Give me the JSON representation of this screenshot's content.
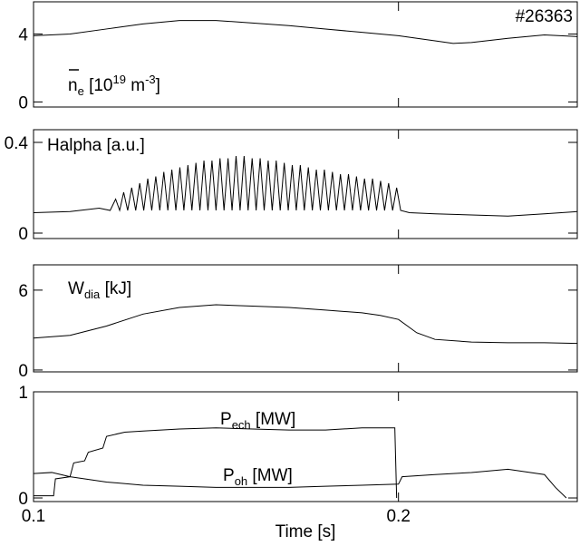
{
  "chart_data": [
    {
      "type": "line",
      "annotation": "#26363",
      "label": [
        "n",
        "e",
        " [10",
        "19",
        " m",
        "-3",
        "]"
      ],
      "ylim": [
        -0.3,
        5.9
      ],
      "yticks": [
        0,
        4
      ],
      "series": [
        {
          "color": "#000000",
          "x": [
            0.1,
            0.11,
            0.12,
            0.13,
            0.14,
            0.15,
            0.16,
            0.17,
            0.18,
            0.19,
            0.2,
            0.21,
            0.215,
            0.22,
            0.23,
            0.24,
            0.249
          ],
          "values": [
            3.9,
            4.0,
            4.3,
            4.6,
            4.8,
            4.8,
            4.65,
            4.5,
            4.3,
            4.1,
            3.9,
            3.6,
            3.45,
            3.5,
            3.75,
            3.95,
            3.85
          ]
        }
      ]
    },
    {
      "type": "line",
      "label": [
        "Halpha [a.u.]"
      ],
      "ylim": [
        -0.024,
        0.456
      ],
      "yticks": [
        0,
        0.4
      ],
      "series": [
        {
          "color": "#000000",
          "x": [
            0.1,
            0.11,
            0.118,
            0.121,
            0.1225,
            0.1236,
            0.1247,
            0.1258,
            0.1269,
            0.128,
            0.1291,
            0.1302,
            0.1313,
            0.1324,
            0.1335,
            0.1346,
            0.1357,
            0.1368,
            0.1379,
            0.139,
            0.1401,
            0.1412,
            0.1423,
            0.1434,
            0.1445,
            0.1456,
            0.1467,
            0.1478,
            0.1489,
            0.15,
            0.1511,
            0.1522,
            0.1533,
            0.1544,
            0.1555,
            0.1566,
            0.1577,
            0.1588,
            0.1599,
            0.161,
            0.1621,
            0.1632,
            0.1643,
            0.1654,
            0.1665,
            0.1676,
            0.1687,
            0.1698,
            0.1709,
            0.172,
            0.1731,
            0.1742,
            0.1753,
            0.1764,
            0.1775,
            0.1786,
            0.1797,
            0.1808,
            0.1819,
            0.183,
            0.1841,
            0.1852,
            0.1863,
            0.1874,
            0.1885,
            0.1896,
            0.1907,
            0.1918,
            0.1929,
            0.194,
            0.1951,
            0.1962,
            0.1973,
            0.1984,
            0.1995,
            0.2006,
            0.203,
            0.21,
            0.22,
            0.23,
            0.24,
            0.249
          ],
          "values": [
            0.09,
            0.095,
            0.11,
            0.1,
            0.15,
            0.1,
            0.18,
            0.1,
            0.2,
            0.1,
            0.22,
            0.1,
            0.24,
            0.1,
            0.25,
            0.1,
            0.27,
            0.1,
            0.28,
            0.1,
            0.29,
            0.1,
            0.3,
            0.1,
            0.31,
            0.1,
            0.32,
            0.1,
            0.32,
            0.1,
            0.33,
            0.1,
            0.33,
            0.1,
            0.34,
            0.1,
            0.34,
            0.1,
            0.33,
            0.1,
            0.33,
            0.1,
            0.32,
            0.1,
            0.32,
            0.1,
            0.31,
            0.1,
            0.3,
            0.1,
            0.3,
            0.1,
            0.29,
            0.1,
            0.28,
            0.1,
            0.28,
            0.1,
            0.27,
            0.1,
            0.26,
            0.1,
            0.26,
            0.1,
            0.25,
            0.1,
            0.24,
            0.1,
            0.24,
            0.1,
            0.23,
            0.1,
            0.22,
            0.1,
            0.2,
            0.1,
            0.09,
            0.085,
            0.08,
            0.075,
            0.085,
            0.095
          ]
        }
      ]
    },
    {
      "type": "line",
      "label": [
        "W",
        "dia",
        " [kJ]"
      ],
      "ylim": [
        -0.14,
        7.9
      ],
      "yticks": [
        0,
        6
      ],
      "series": [
        {
          "color": "#000000",
          "x": [
            0.1,
            0.11,
            0.12,
            0.13,
            0.14,
            0.15,
            0.16,
            0.17,
            0.18,
            0.19,
            0.195,
            0.2,
            0.205,
            0.21,
            0.22,
            0.23,
            0.24,
            0.249
          ],
          "values": [
            2.4,
            2.6,
            3.3,
            4.2,
            4.7,
            4.9,
            4.8,
            4.7,
            4.5,
            4.3,
            4.1,
            3.8,
            2.8,
            2.3,
            2.1,
            2.05,
            2.05,
            2.0
          ]
        }
      ]
    },
    {
      "type": "line",
      "label_ech": [
        "P",
        "ech",
        " [MW]"
      ],
      "label_oh": [
        "P",
        "oh",
        " [MW]"
      ],
      "xlabel": "Time [s]",
      "xlim": [
        0.1,
        0.249
      ],
      "xticks": [
        0.1,
        0.2
      ],
      "ylim": [
        -0.034,
        1
      ],
      "yticks": [
        0,
        1
      ],
      "series": [
        {
          "color": "#000000",
          "x": [
            0.1,
            0.1055,
            0.106,
            0.11,
            0.111,
            0.114,
            0.115,
            0.119,
            0.12,
            0.125,
            0.13,
            0.14,
            0.15,
            0.16,
            0.17,
            0.18,
            0.19,
            0.199,
            0.1995
          ],
          "values": [
            0.02,
            0.02,
            0.18,
            0.2,
            0.33,
            0.35,
            0.43,
            0.47,
            0.58,
            0.62,
            0.63,
            0.65,
            0.66,
            0.65,
            0.64,
            0.64,
            0.66,
            0.66,
            0.0
          ]
        },
        {
          "color": "#000000",
          "x": [
            0.1,
            0.105,
            0.11,
            0.12,
            0.13,
            0.14,
            0.15,
            0.16,
            0.17,
            0.18,
            0.19,
            0.2,
            0.201,
            0.21,
            0.22,
            0.23,
            0.24,
            0.243,
            0.246
          ],
          "values": [
            0.23,
            0.24,
            0.2,
            0.15,
            0.12,
            0.11,
            0.1,
            0.1,
            0.1,
            0.11,
            0.12,
            0.13,
            0.2,
            0.22,
            0.24,
            0.27,
            0.22,
            0.1,
            0.0
          ]
        }
      ]
    }
  ]
}
